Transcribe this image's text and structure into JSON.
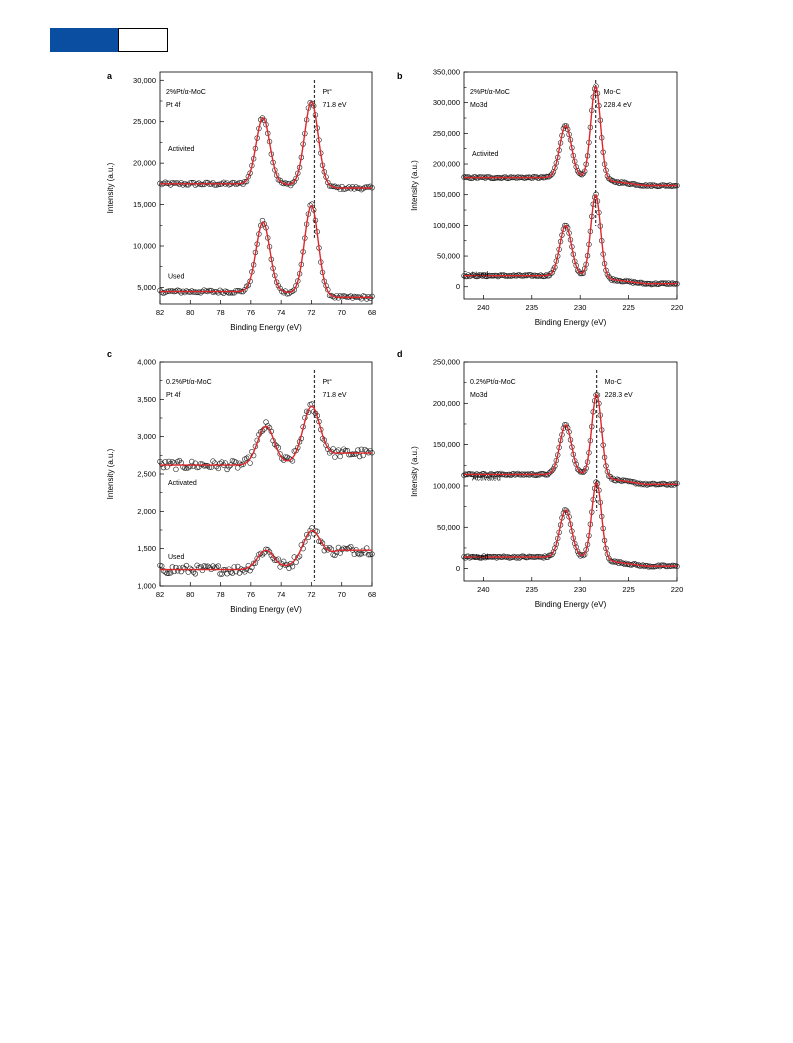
{
  "header": {
    "brand_color": "#0a4ea2"
  },
  "styles": {
    "fit_color": "#e0262b",
    "point_color": "#222222",
    "dash_color": "#333333"
  },
  "chart_data": [
    {
      "panel": "a",
      "type": "scatter",
      "xlabel": "Binding Energy (eV)",
      "ylabel": "Intensity (a.u.)",
      "xlim": [
        82,
        68
      ],
      "ylim": [
        3000,
        31000
      ],
      "xticks": [
        82,
        80,
        78,
        76,
        74,
        72,
        70,
        68
      ],
      "xtick_labels": [
        "82",
        "80",
        "78",
        "76",
        "74",
        "72",
        "70",
        "68"
      ],
      "yticks": [
        5000,
        10000,
        15000,
        20000,
        25000,
        30000
      ],
      "ytick_labels": [
        "5,000",
        "10,000",
        "15,000",
        "20,000",
        "25,000",
        "30,000"
      ],
      "sample": "2%Pt/α-MoC",
      "orbital": "Pt 4f",
      "peak_label": "Pt°",
      "peak_energy": "71.8 eV",
      "peak_x": 71.8,
      "series": [
        {
          "name": "Activited",
          "baseline": 17500,
          "tail": 17000,
          "peaks": [
            [
              75.2,
              8000,
              0.45
            ],
            [
              72.0,
              10200,
              0.45
            ]
          ],
          "noise": 200
        },
        {
          "name": "Used",
          "baseline": 4500,
          "tail": 3800,
          "peaks": [
            [
              75.2,
              8400,
              0.45
            ],
            [
              72.0,
              10800,
              0.45
            ]
          ],
          "noise": 200
        }
      ]
    },
    {
      "panel": "b",
      "type": "scatter",
      "xlabel": "Binding Energy (eV)",
      "ylabel": "Intensity (a.u.)",
      "xlim": [
        242,
        220
      ],
      "ylim": [
        -20000,
        350000
      ],
      "xticks": [
        240,
        235,
        230,
        225,
        220
      ],
      "xtick_labels": [
        "240",
        "235",
        "230",
        "225",
        "220"
      ],
      "yticks": [
        0,
        50000,
        100000,
        150000,
        200000,
        250000,
        300000,
        350000
      ],
      "ytick_labels": [
        "0",
        "50,000",
        "100,000",
        "150,000",
        "200,000",
        "250,000",
        "300,000",
        "350,000"
      ],
      "sample": "2%Pt/α-MoC",
      "orbital": "Mo3d",
      "peak_label": "Mo-C",
      "peak_energy": "228.4 eV",
      "peak_x": 228.4,
      "series": [
        {
          "name": "Activited",
          "baseline": 178000,
          "tail": 165000,
          "peaks": [
            [
              231.5,
              85000,
              0.6
            ],
            [
              228.4,
              152000,
              0.5
            ]
          ],
          "noise": 1500
        },
        {
          "name": "Used",
          "baseline": 18000,
          "tail": 5000,
          "peaks": [
            [
              231.5,
              82000,
              0.6
            ],
            [
              228.4,
              135000,
              0.5
            ]
          ],
          "noise": 1500
        }
      ]
    },
    {
      "panel": "c",
      "type": "scatter",
      "xlabel": "Binding Energy (eV)",
      "ylabel": "Intensity (a.u.)",
      "xlim": [
        82,
        68
      ],
      "ylim": [
        1000,
        4000
      ],
      "xticks": [
        82,
        80,
        78,
        76,
        74,
        72,
        70,
        68
      ],
      "xtick_labels": [
        "82",
        "80",
        "78",
        "76",
        "74",
        "72",
        "70",
        "68"
      ],
      "yticks": [
        1000,
        1500,
        2000,
        2500,
        3000,
        3500,
        4000
      ],
      "ytick_labels": [
        "1,000",
        "1,500",
        "2,000",
        "2,500",
        "3,000",
        "3,500",
        "4,000"
      ],
      "sample": "0.2%Pt/α-MoC",
      "orbital": "Pt 4f",
      "peak_label": "Pt°",
      "peak_energy": "71.8 eV",
      "peak_x": 71.8,
      "series": [
        {
          "name": "Activated",
          "baseline": 2620,
          "tail": 2780,
          "peaks": [
            [
              75.0,
              520,
              0.55
            ],
            [
              72.0,
              700,
              0.55
            ]
          ],
          "noise": 60
        },
        {
          "name": "Used",
          "baseline": 1220,
          "tail": 1480,
          "peaks": [
            [
              75.0,
              260,
              0.55
            ],
            [
              72.0,
              380,
              0.55
            ]
          ],
          "noise": 60
        }
      ]
    },
    {
      "panel": "d",
      "type": "scatter",
      "xlabel": "Binding Energy (eV)",
      "ylabel": "Intensity (a.u.)",
      "xlim": [
        242,
        220
      ],
      "ylim": [
        -15000,
        250000
      ],
      "xticks": [
        240,
        235,
        230,
        225,
        220
      ],
      "xtick_labels": [
        "240",
        "235",
        "230",
        "225",
        "220"
      ],
      "yticks": [
        0,
        50000,
        100000,
        150000,
        200000,
        250000
      ],
      "ytick_labels": [
        "0",
        "50,000",
        "100,000",
        "150,000",
        "200,000",
        "250,000"
      ],
      "sample": "0.2%Pt/α-MoC",
      "orbital": "Mo3d",
      "peak_label": "Mo-C",
      "peak_energy": "228.3 eV",
      "peak_x": 228.3,
      "series": [
        {
          "name": "Activated",
          "baseline": 114000,
          "tail": 102000,
          "peaks": [
            [
              231.5,
              60000,
              0.6
            ],
            [
              228.3,
              100000,
              0.5
            ]
          ],
          "noise": 1200
        },
        {
          "name": "Used",
          "baseline": 14000,
          "tail": 3000,
          "peaks": [
            [
              231.5,
              57000,
              0.6
            ],
            [
              228.3,
              93000,
              0.5
            ]
          ],
          "noise": 1200
        }
      ]
    }
  ]
}
